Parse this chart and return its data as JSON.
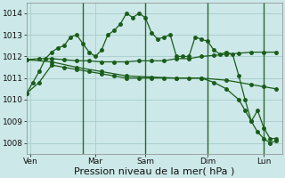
{
  "background_color": "#cce8e8",
  "grid_color": "#aacccc",
  "line_color": "#1a5c1a",
  "series1_x": [
    0,
    0.5,
    1.0,
    1.5,
    2.0,
    2.5,
    3.0,
    3.5,
    4.0,
    4.5,
    5.0,
    5.5,
    6.0,
    6.5,
    7.0,
    7.5,
    8.0,
    8.5,
    9.0,
    9.5,
    10.0,
    10.5,
    11.0,
    11.5,
    12.0,
    12.5,
    13.0,
    13.5,
    14.0,
    14.5,
    15.0,
    15.5,
    16.0,
    16.5,
    17.0,
    17.5,
    18.0,
    18.5,
    19.0,
    19.5,
    20.0
  ],
  "series1_y": [
    1010.3,
    1010.8,
    1011.3,
    1011.9,
    1012.2,
    1012.4,
    1012.5,
    1012.9,
    1013.0,
    1012.6,
    1012.2,
    1012.0,
    1012.3,
    1013.0,
    1013.2,
    1013.5,
    1014.0,
    1013.8,
    1014.0,
    1013.8,
    1013.1,
    1012.8,
    1012.9,
    1013.0,
    1012.0,
    1012.0,
    1012.0,
    1012.9,
    1012.8,
    1012.7,
    1012.3,
    1012.1,
    1012.2,
    1012.1,
    1011.1,
    1010.0,
    1009.0,
    1009.5,
    1008.7,
    1008.2,
    1008.2
  ],
  "series2_x": [
    0,
    1,
    2,
    3,
    4,
    5,
    6,
    7,
    8,
    9,
    10,
    11,
    12,
    13,
    14,
    15,
    16,
    17,
    18,
    19,
    20
  ],
  "series2_y": [
    1011.85,
    1011.9,
    1011.9,
    1011.85,
    1011.8,
    1011.8,
    1011.75,
    1011.75,
    1011.75,
    1011.8,
    1011.8,
    1011.8,
    1011.9,
    1011.9,
    1012.0,
    1012.05,
    1012.1,
    1012.15,
    1012.2,
    1012.2,
    1012.2
  ],
  "series3_x": [
    0,
    2,
    4,
    6,
    8,
    10,
    12,
    14,
    16,
    18,
    19,
    20
  ],
  "series3_y": [
    1011.85,
    1011.75,
    1011.5,
    1011.3,
    1011.1,
    1011.05,
    1011.0,
    1011.0,
    1010.9,
    1010.7,
    1010.6,
    1010.5
  ],
  "series4_x": [
    0,
    1,
    2,
    3,
    4,
    5,
    6,
    7,
    8,
    9,
    10,
    11,
    12,
    13,
    14,
    15,
    16,
    17,
    17.5,
    18.0,
    18.5,
    19.0,
    19.5,
    20.0
  ],
  "series4_y": [
    1010.3,
    1010.8,
    1011.6,
    1011.5,
    1011.4,
    1011.3,
    1011.2,
    1011.1,
    1011.0,
    1011.0,
    1011.0,
    1011.0,
    1011.0,
    1011.0,
    1011.0,
    1010.8,
    1010.5,
    1010.0,
    1009.5,
    1009.0,
    1008.5,
    1008.2,
    1008.0,
    1008.1
  ],
  "xlabel": "Pression niveau de la mer( hPa )",
  "xlabel_fontsize": 8,
  "xtick_positions": [
    0.3,
    5.5,
    9.5,
    14.5,
    19.0
  ],
  "xtick_labels": [
    "Ven",
    "Mar",
    "Sam",
    "Dim",
    "Lun"
  ],
  "ylim": [
    1007.5,
    1014.5
  ],
  "yticks": [
    1008,
    1009,
    1010,
    1011,
    1012,
    1013,
    1014
  ],
  "vlines_x": [
    4.5,
    9.5,
    14.5,
    19.0
  ],
  "xlim": [
    0,
    20.5
  ]
}
